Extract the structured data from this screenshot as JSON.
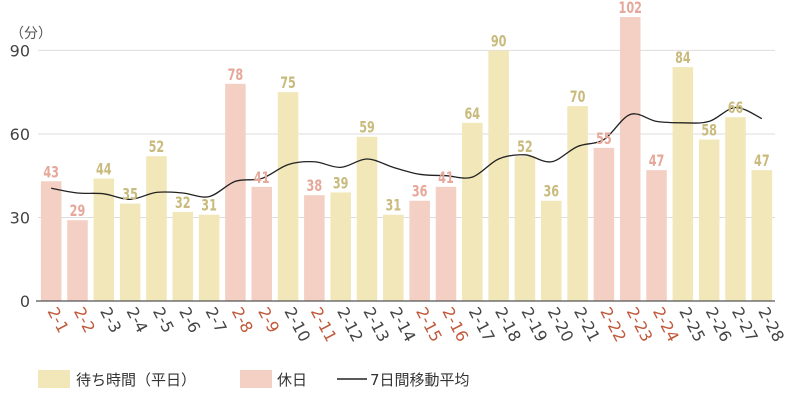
{
  "chart_data": {
    "type": "bar",
    "ylabel": "（分）",
    "ylim": [
      0,
      102
    ],
    "yticks": [
      0,
      30,
      60,
      90
    ],
    "categories": [
      "2-1",
      "2-2",
      "2-3",
      "2-4",
      "2-5",
      "2-6",
      "2-7",
      "2-8",
      "2-9",
      "2-10",
      "2-11",
      "2-12",
      "2-13",
      "2-14",
      "2-15",
      "2-16",
      "2-17",
      "2-18",
      "2-19",
      "2-20",
      "2-21",
      "2-22",
      "2-23",
      "2-24",
      "2-25",
      "2-26",
      "2-27",
      "2-28"
    ],
    "holiday": [
      true,
      true,
      false,
      false,
      false,
      false,
      false,
      true,
      true,
      false,
      true,
      false,
      false,
      false,
      true,
      true,
      false,
      false,
      false,
      false,
      false,
      true,
      true,
      true,
      false,
      false,
      false,
      false
    ],
    "values": [
      43,
      29,
      44,
      35,
      52,
      32,
      31,
      78,
      41,
      75,
      38,
      39,
      59,
      31,
      36,
      41,
      64,
      90,
      52,
      36,
      70,
      55,
      102,
      47,
      84,
      58,
      66,
      47
    ],
    "moving_average": [
      40.5,
      38.8,
      38.5,
      36.5,
      39,
      38.8,
      37.5,
      43,
      44,
      49,
      50,
      48,
      51,
      48,
      45.5,
      45,
      44.5,
      51,
      52.5,
      50,
      55.5,
      58,
      67,
      64.5,
      64,
      64.5,
      69.5,
      65.5
    ],
    "legend": {
      "weekday": "待ち時間（平日）",
      "holiday": "休日",
      "average": "7日間移動平均"
    },
    "grid": "horizontal",
    "legend_position": "bottom-left",
    "colors": {
      "weekday": "#f1e7b8",
      "holiday": "#f4cfc4",
      "weekday_label": "#c9bb7d",
      "holiday_label": "#e6a89a",
      "holiday_tick": "#c0583a",
      "tick": "#444444",
      "line": "#222222",
      "grid": "#dddddd",
      "axis": "#555555"
    }
  }
}
